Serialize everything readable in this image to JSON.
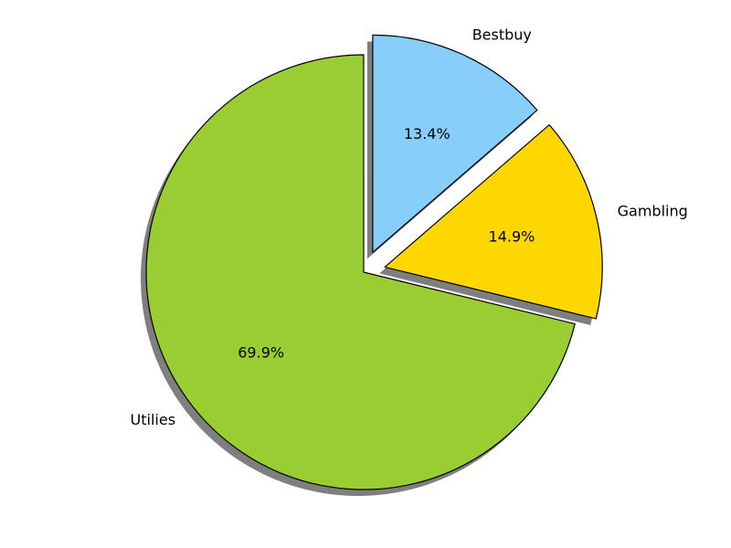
{
  "chart_data": {
    "type": "pie",
    "start_angle_deg": 90,
    "direction": "counterclockwise",
    "shadow": true,
    "slices": [
      {
        "label": "Utilies",
        "value": 69.9,
        "pct_text": "69.9%",
        "color": "#9ACD32",
        "explode": 0
      },
      {
        "label": "Gambling",
        "value": 14.9,
        "pct_text": "14.9%",
        "color": "#FFD700",
        "explode": 0.1
      },
      {
        "label": "Bestbuy",
        "value": 13.4,
        "pct_text": "13.4%",
        "color": "#87CEFA",
        "explode": 0.1
      }
    ]
  }
}
